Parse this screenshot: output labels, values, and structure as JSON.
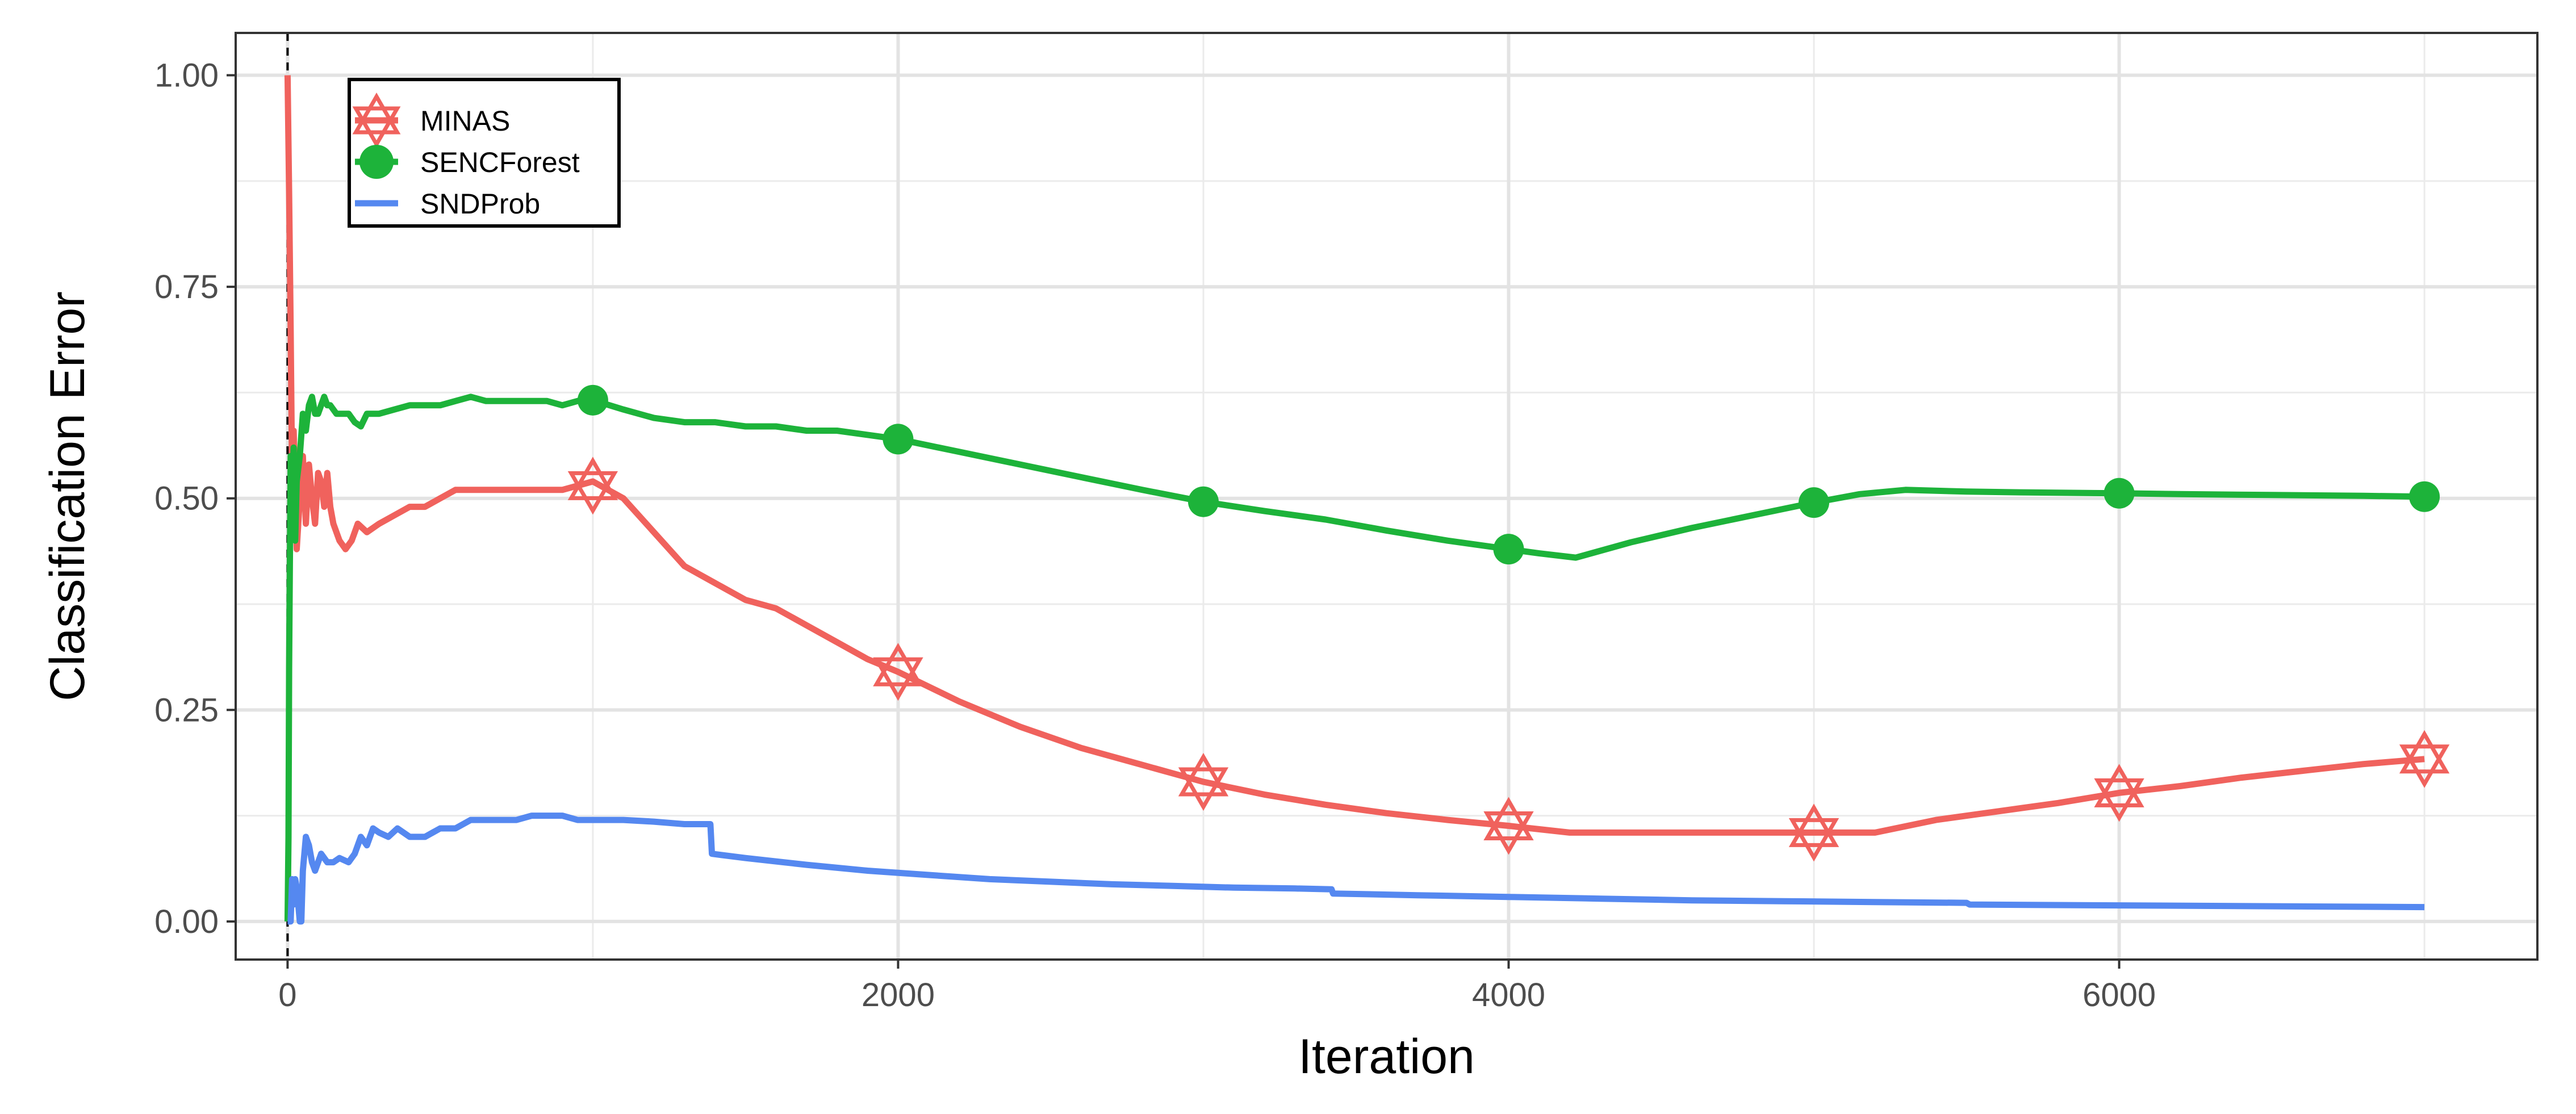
{
  "chart_data": {
    "type": "line",
    "title": "",
    "xlabel": "Iteration",
    "ylabel": "Classification Error",
    "xlim": [
      -170,
      7370
    ],
    "ylim": [
      -0.045,
      1.05
    ],
    "x_ticks": [
      0,
      2000,
      4000,
      6000
    ],
    "x_tick_labels": [
      "0",
      "2000",
      "4000",
      "6000"
    ],
    "y_ticks": [
      0,
      0.25,
      0.5,
      0.75,
      1.0
    ],
    "y_tick_labels": [
      "0.00",
      "0.25",
      "0.50",
      "0.75",
      "1.00"
    ],
    "grid": true,
    "legend_position": "top-left inside",
    "vline_x": 0,
    "colors": {
      "MINAS": "#F0625D",
      "SENCForest": "#1DB33A",
      "SNDProb": "#5588F0"
    },
    "series": [
      {
        "name": "MINAS",
        "marker": "hexagram",
        "points": [
          [
            0,
            1.0
          ],
          [
            5,
            0.86
          ],
          [
            10,
            0.7
          ],
          [
            15,
            0.52
          ],
          [
            20,
            0.58
          ],
          [
            30,
            0.44
          ],
          [
            40,
            0.5
          ],
          [
            50,
            0.55
          ],
          [
            60,
            0.47
          ],
          [
            70,
            0.54
          ],
          [
            80,
            0.5
          ],
          [
            90,
            0.47
          ],
          [
            100,
            0.53
          ],
          [
            110,
            0.52
          ],
          [
            120,
            0.49
          ],
          [
            130,
            0.53
          ],
          [
            140,
            0.49
          ],
          [
            150,
            0.47
          ],
          [
            170,
            0.45
          ],
          [
            190,
            0.44
          ],
          [
            210,
            0.45
          ],
          [
            230,
            0.47
          ],
          [
            260,
            0.46
          ],
          [
            300,
            0.47
          ],
          [
            350,
            0.48
          ],
          [
            400,
            0.49
          ],
          [
            450,
            0.49
          ],
          [
            500,
            0.5
          ],
          [
            550,
            0.51
          ],
          [
            600,
            0.51
          ],
          [
            650,
            0.51
          ],
          [
            700,
            0.51
          ],
          [
            750,
            0.51
          ],
          [
            800,
            0.51
          ],
          [
            850,
            0.51
          ],
          [
            900,
            0.51
          ],
          [
            950,
            0.515
          ],
          [
            1000,
            0.52
          ],
          [
            1050,
            0.51
          ],
          [
            1100,
            0.5
          ],
          [
            1200,
            0.46
          ],
          [
            1300,
            0.42
          ],
          [
            1400,
            0.4
          ],
          [
            1500,
            0.38
          ],
          [
            1600,
            0.37
          ],
          [
            1700,
            0.35
          ],
          [
            1800,
            0.33
          ],
          [
            1900,
            0.31
          ],
          [
            2000,
            0.295
          ],
          [
            2200,
            0.26
          ],
          [
            2400,
            0.23
          ],
          [
            2600,
            0.205
          ],
          [
            2800,
            0.185
          ],
          [
            3000,
            0.165
          ],
          [
            3200,
            0.15
          ],
          [
            3400,
            0.138
          ],
          [
            3600,
            0.128
          ],
          [
            3800,
            0.12
          ],
          [
            4000,
            0.113
          ],
          [
            4200,
            0.105
          ],
          [
            4400,
            0.105
          ],
          [
            4600,
            0.105
          ],
          [
            4800,
            0.105
          ],
          [
            5000,
            0.105
          ],
          [
            5200,
            0.105
          ],
          [
            5400,
            0.12
          ],
          [
            5600,
            0.13
          ],
          [
            5800,
            0.14
          ],
          [
            6000,
            0.152
          ],
          [
            6200,
            0.16
          ],
          [
            6400,
            0.17
          ],
          [
            6600,
            0.178
          ],
          [
            6800,
            0.186
          ],
          [
            7000,
            0.192
          ]
        ],
        "marker_points": [
          [
            1000,
            0.515
          ],
          [
            2000,
            0.295
          ],
          [
            3000,
            0.165
          ],
          [
            4000,
            0.113
          ],
          [
            5000,
            0.105
          ],
          [
            6000,
            0.152
          ],
          [
            7000,
            0.192
          ]
        ]
      },
      {
        "name": "SENCForest",
        "marker": "circle",
        "points": [
          [
            0,
            0.0
          ],
          [
            3,
            0.1
          ],
          [
            5,
            0.3
          ],
          [
            8,
            0.45
          ],
          [
            10,
            0.55
          ],
          [
            15,
            0.5
          ],
          [
            20,
            0.56
          ],
          [
            25,
            0.45
          ],
          [
            30,
            0.52
          ],
          [
            40,
            0.55
          ],
          [
            50,
            0.6
          ],
          [
            60,
            0.58
          ],
          [
            70,
            0.61
          ],
          [
            80,
            0.62
          ],
          [
            90,
            0.6
          ],
          [
            100,
            0.6
          ],
          [
            110,
            0.61
          ],
          [
            120,
            0.62
          ],
          [
            130,
            0.61
          ],
          [
            140,
            0.61
          ],
          [
            160,
            0.6
          ],
          [
            180,
            0.6
          ],
          [
            200,
            0.6
          ],
          [
            220,
            0.59
          ],
          [
            240,
            0.585
          ],
          [
            260,
            0.6
          ],
          [
            300,
            0.6
          ],
          [
            350,
            0.605
          ],
          [
            400,
            0.61
          ],
          [
            450,
            0.61
          ],
          [
            500,
            0.61
          ],
          [
            550,
            0.615
          ],
          [
            600,
            0.62
          ],
          [
            650,
            0.615
          ],
          [
            700,
            0.615
          ],
          [
            750,
            0.615
          ],
          [
            800,
            0.615
          ],
          [
            850,
            0.615
          ],
          [
            900,
            0.61
          ],
          [
            950,
            0.615
          ],
          [
            1000,
            0.616
          ],
          [
            1100,
            0.605
          ],
          [
            1200,
            0.595
          ],
          [
            1300,
            0.59
          ],
          [
            1400,
            0.59
          ],
          [
            1500,
            0.585
          ],
          [
            1600,
            0.585
          ],
          [
            1700,
            0.58
          ],
          [
            1800,
            0.58
          ],
          [
            1900,
            0.575
          ],
          [
            2000,
            0.57
          ],
          [
            2200,
            0.555
          ],
          [
            2400,
            0.54
          ],
          [
            2600,
            0.525
          ],
          [
            2800,
            0.51
          ],
          [
            3000,
            0.496
          ],
          [
            3200,
            0.485
          ],
          [
            3400,
            0.475
          ],
          [
            3600,
            0.462
          ],
          [
            3800,
            0.45
          ],
          [
            4000,
            0.44
          ],
          [
            4100,
            0.435
          ],
          [
            4220,
            0.43
          ],
          [
            4400,
            0.448
          ],
          [
            4600,
            0.465
          ],
          [
            4800,
            0.48
          ],
          [
            5000,
            0.495
          ],
          [
            5150,
            0.505
          ],
          [
            5300,
            0.51
          ],
          [
            5500,
            0.508
          ],
          [
            5700,
            0.507
          ],
          [
            6000,
            0.506
          ],
          [
            6200,
            0.505
          ],
          [
            6500,
            0.504
          ],
          [
            6800,
            0.503
          ],
          [
            7000,
            0.502
          ]
        ],
        "marker_points": [
          [
            1000,
            0.616
          ],
          [
            2000,
            0.57
          ],
          [
            3000,
            0.496
          ],
          [
            4000,
            0.44
          ],
          [
            5000,
            0.495
          ],
          [
            6000,
            0.506
          ],
          [
            7000,
            0.502
          ]
        ]
      },
      {
        "name": "SNDProb",
        "marker": "line",
        "points": [
          [
            0,
            0.0
          ],
          [
            10,
            0.0
          ],
          [
            15,
            0.05
          ],
          [
            20,
            0.02
          ],
          [
            25,
            0.05
          ],
          [
            30,
            0.04
          ],
          [
            40,
            0.0
          ],
          [
            45,
            0.0
          ],
          [
            50,
            0.06
          ],
          [
            60,
            0.1
          ],
          [
            70,
            0.09
          ],
          [
            80,
            0.07
          ],
          [
            90,
            0.06
          ],
          [
            110,
            0.08
          ],
          [
            130,
            0.07
          ],
          [
            150,
            0.07
          ],
          [
            170,
            0.075
          ],
          [
            200,
            0.07
          ],
          [
            220,
            0.08
          ],
          [
            240,
            0.1
          ],
          [
            260,
            0.09
          ],
          [
            280,
            0.11
          ],
          [
            300,
            0.105
          ],
          [
            330,
            0.1
          ],
          [
            360,
            0.11
          ],
          [
            400,
            0.1
          ],
          [
            450,
            0.1
          ],
          [
            500,
            0.11
          ],
          [
            550,
            0.11
          ],
          [
            600,
            0.12
          ],
          [
            650,
            0.12
          ],
          [
            700,
            0.12
          ],
          [
            750,
            0.12
          ],
          [
            800,
            0.125
          ],
          [
            850,
            0.125
          ],
          [
            900,
            0.125
          ],
          [
            950,
            0.12
          ],
          [
            1000,
            0.12
          ],
          [
            1100,
            0.12
          ],
          [
            1200,
            0.118
          ],
          [
            1300,
            0.115
          ],
          [
            1385,
            0.115
          ],
          [
            1390,
            0.08
          ],
          [
            1500,
            0.075
          ],
          [
            1700,
            0.067
          ],
          [
            1900,
            0.06
          ],
          [
            2100,
            0.055
          ],
          [
            2300,
            0.05
          ],
          [
            2500,
            0.047
          ],
          [
            2700,
            0.044
          ],
          [
            2900,
            0.042
          ],
          [
            3100,
            0.04
          ],
          [
            3300,
            0.039
          ],
          [
            3420,
            0.038
          ],
          [
            3425,
            0.033
          ],
          [
            3700,
            0.031
          ],
          [
            4000,
            0.029
          ],
          [
            4300,
            0.027
          ],
          [
            4600,
            0.025
          ],
          [
            4900,
            0.024
          ],
          [
            5200,
            0.023
          ],
          [
            5500,
            0.022
          ],
          [
            5510,
            0.02
          ],
          [
            6000,
            0.019
          ],
          [
            6500,
            0.018
          ],
          [
            7000,
            0.017
          ]
        ],
        "marker_points": []
      }
    ]
  }
}
